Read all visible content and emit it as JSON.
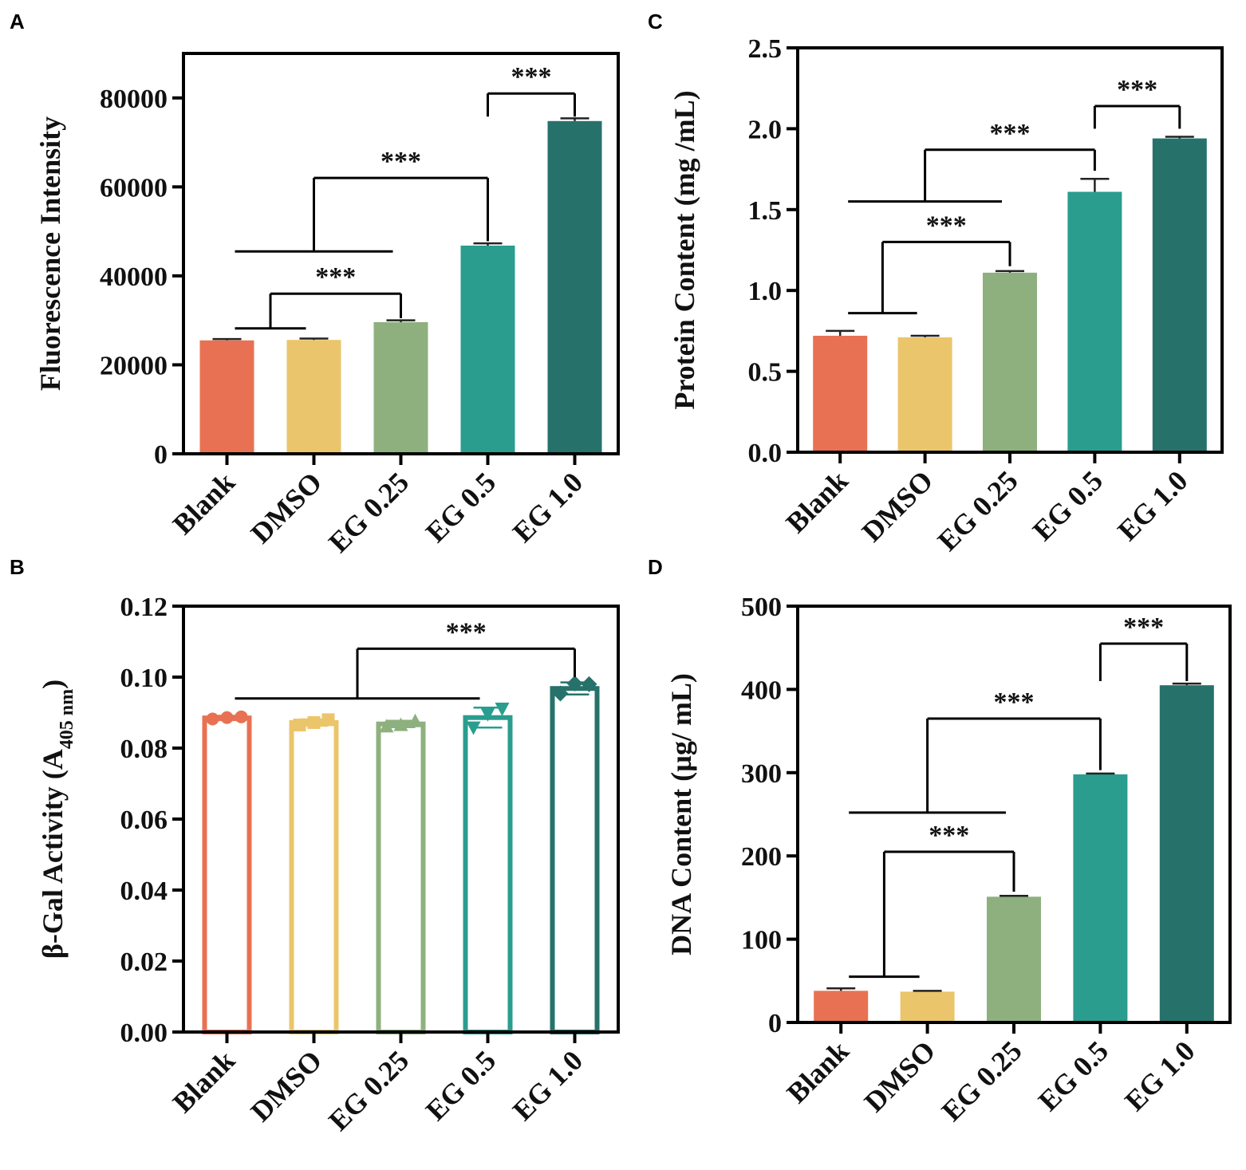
{
  "figure": {
    "title": ""
  },
  "chart_data": [
    {
      "panel": "A",
      "type": "bar",
      "style": "filled",
      "title": "",
      "xlabel": "",
      "ylabel": "Fluorescence Intensity",
      "categories": [
        "Blank",
        "DMSO",
        "EG 0.25",
        "EG 0.5",
        "EG 1.0"
      ],
      "values": [
        25500,
        25600,
        29600,
        46800,
        74800
      ],
      "errors": [
        300,
        300,
        400,
        500,
        600
      ],
      "colors": [
        "#E87153",
        "#EBC56B",
        "#8EB07E",
        "#2A9D8F",
        "#26726B"
      ],
      "ylim": [
        0,
        90000
      ],
      "yticks": [
        0,
        20000,
        40000,
        60000,
        80000
      ],
      "ytick_labels": [
        "0",
        "20000",
        "40000",
        "60000",
        "80000"
      ],
      "grid": false,
      "significance": [
        {
          "label": "***",
          "type": "group",
          "group": [
            0,
            1
          ],
          "group_y": 28200,
          "target": 2,
          "top": 36000,
          "target_y": 30500
        },
        {
          "label": "***",
          "type": "group",
          "group": [
            0,
            2
          ],
          "group_y": 45500,
          "target": 3,
          "top": 62000,
          "target_y": 47800
        },
        {
          "label": "***",
          "type": "pair",
          "from": 3,
          "target": 4,
          "top": 81000,
          "target_y": 75800
        }
      ]
    },
    {
      "panel": "B",
      "type": "bar",
      "style": "outlined",
      "title": "",
      "xlabel": "",
      "ylabel": "β-Gal Activity (A",
      "ylabel_sub": "405 nm",
      "ylabel_end": ")",
      "categories": [
        "Blank",
        "DMSO",
        "EG 0.25",
        "EG 0.5",
        "EG 1.0"
      ],
      "values": [
        0.0885,
        0.0872,
        0.0868,
        0.0886,
        0.0968
      ],
      "errors": [
        0.0006,
        0.0009,
        0.0009,
        0.0028,
        0.0017
      ],
      "points": [
        [
          0.0882,
          0.0886,
          0.0888
        ],
        [
          0.0865,
          0.0872,
          0.088
        ],
        [
          0.0862,
          0.0866,
          0.0877
        ],
        [
          0.0857,
          0.0895,
          0.091
        ],
        [
          0.0954,
          0.0982,
          0.098
        ]
      ],
      "markers": [
        "circle",
        "square",
        "triangle-up",
        "triangle-down",
        "diamond"
      ],
      "colors": [
        "#E87153",
        "#EBC56B",
        "#8EB07E",
        "#2A9D8F",
        "#26726B"
      ],
      "ylim": [
        0,
        0.12
      ],
      "yticks": [
        0,
        0.02,
        0.04,
        0.06,
        0.08,
        0.1,
        0.12
      ],
      "ytick_labels": [
        "0.00",
        "0.02",
        "0.04",
        "0.06",
        "0.08",
        "0.10",
        "0.12"
      ],
      "grid": false,
      "significance": [
        {
          "label": "***",
          "type": "group",
          "group": [
            0,
            3
          ],
          "group_y": 0.094,
          "target": 4,
          "top": 0.108,
          "target_y": 0.1
        }
      ]
    },
    {
      "panel": "C",
      "type": "bar",
      "style": "filled",
      "title": "",
      "xlabel": "",
      "ylabel": "Protein Content (mg /mL)",
      "categories": [
        "Blank",
        "DMSO",
        "EG 0.25",
        "EG 0.5",
        "EG 1.0"
      ],
      "values": [
        0.72,
        0.71,
        1.11,
        1.61,
        1.94
      ],
      "errors": [
        0.03,
        0.01,
        0.01,
        0.08,
        0.01
      ],
      "colors": [
        "#E87153",
        "#EBC56B",
        "#8EB07E",
        "#2A9D8F",
        "#26726B"
      ],
      "ylim": [
        0,
        2.5
      ],
      "yticks": [
        0,
        0.5,
        1.0,
        1.5,
        2.0,
        2.5
      ],
      "ytick_labels": [
        "0.0",
        "0.5",
        "1.0",
        "1.5",
        "2.0",
        "2.5"
      ],
      "grid": false,
      "significance": [
        {
          "label": "***",
          "type": "group",
          "group": [
            0,
            1
          ],
          "group_y": 0.86,
          "target": 2,
          "top": 1.3,
          "target_y": 1.15
        },
        {
          "label": "***",
          "type": "group",
          "group": [
            0,
            2
          ],
          "group_y": 1.55,
          "target": 3,
          "top": 1.87,
          "target_y": 1.74
        },
        {
          "label": "***",
          "type": "pair",
          "from": 3,
          "target": 4,
          "top": 2.14,
          "target_y": 2.0
        }
      ]
    },
    {
      "panel": "D",
      "type": "bar",
      "style": "filled",
      "title": "",
      "xlabel": "",
      "ylabel": "DNA Content (µg/ mL)",
      "categories": [
        "Blank",
        "DMSO",
        "EG 0.25",
        "EG 0.5",
        "EG 1.0"
      ],
      "values": [
        38,
        37,
        151,
        298,
        405
      ],
      "errors": [
        3,
        1,
        1,
        1,
        2
      ],
      "colors": [
        "#E87153",
        "#EBC56B",
        "#8EB07E",
        "#2A9D8F",
        "#26726B"
      ],
      "ylim": [
        0,
        500
      ],
      "yticks": [
        0,
        100,
        200,
        300,
        400,
        500
      ],
      "ytick_labels": [
        "0",
        "100",
        "200",
        "300",
        "400",
        "500"
      ],
      "grid": false,
      "significance": [
        {
          "label": "***",
          "type": "group",
          "group": [
            0,
            1
          ],
          "group_y": 55,
          "target": 2,
          "top": 205,
          "target_y": 157
        },
        {
          "label": "***",
          "type": "group",
          "group": [
            0,
            2
          ],
          "group_y": 252,
          "target": 3,
          "top": 365,
          "target_y": 303
        },
        {
          "label": "***",
          "type": "pair",
          "from": 3,
          "target": 4,
          "top": 455,
          "target_y": 410
        }
      ]
    }
  ]
}
